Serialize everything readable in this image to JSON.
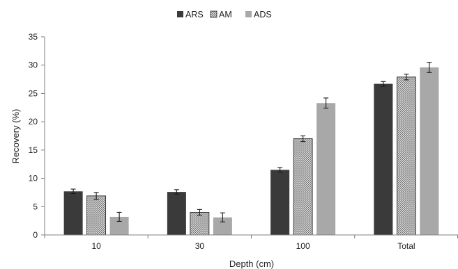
{
  "chart_data": {
    "type": "bar",
    "categories": [
      "10",
      "30",
      "100",
      "Total"
    ],
    "series": [
      {
        "name": "ARS",
        "values": [
          7.7,
          7.6,
          11.5,
          26.7
        ],
        "errors": [
          0.4,
          0.4,
          0.4,
          0.4
        ],
        "color": "#3a3a3a",
        "pattern": "solid"
      },
      {
        "name": "AM",
        "values": [
          6.9,
          4.0,
          17.0,
          27.9
        ],
        "errors": [
          0.6,
          0.5,
          0.5,
          0.5
        ],
        "color": "#d0d0d0",
        "pattern": "crosshatch"
      },
      {
        "name": "ADS",
        "values": [
          3.2,
          3.1,
          23.3,
          29.6
        ],
        "errors": [
          0.8,
          0.8,
          0.9,
          0.9
        ],
        "color": "#a8a8a8",
        "pattern": "solid"
      }
    ],
    "xlabel": "Depth (cm)",
    "ylabel": "Recovery (%)",
    "ylim": [
      0,
      35
    ],
    "yticks": [
      "0",
      "5",
      "10",
      "15",
      "20",
      "25",
      "30",
      "35"
    ],
    "grid": false,
    "legend_position": "top-center",
    "error_bars": true
  }
}
